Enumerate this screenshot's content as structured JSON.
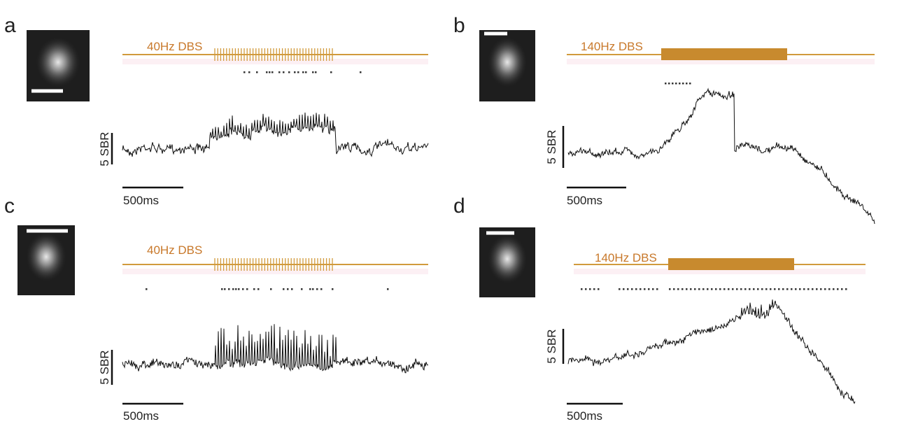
{
  "panels": [
    {
      "letter": "a",
      "stim_label": "40Hz DBS",
      "scale_y": "5 SBR",
      "scale_x": "500ms"
    },
    {
      "letter": "b",
      "stim_label": "140Hz DBS",
      "scale_y": "5 SBR",
      "scale_x": "500ms"
    },
    {
      "letter": "c",
      "stim_label": "40Hz DBS",
      "scale_y": "5 SBR",
      "scale_x": "500ms"
    },
    {
      "letter": "d",
      "stim_label": "140Hz DBS",
      "scale_y": "5 SBR",
      "scale_x": "500ms"
    }
  ]
}
